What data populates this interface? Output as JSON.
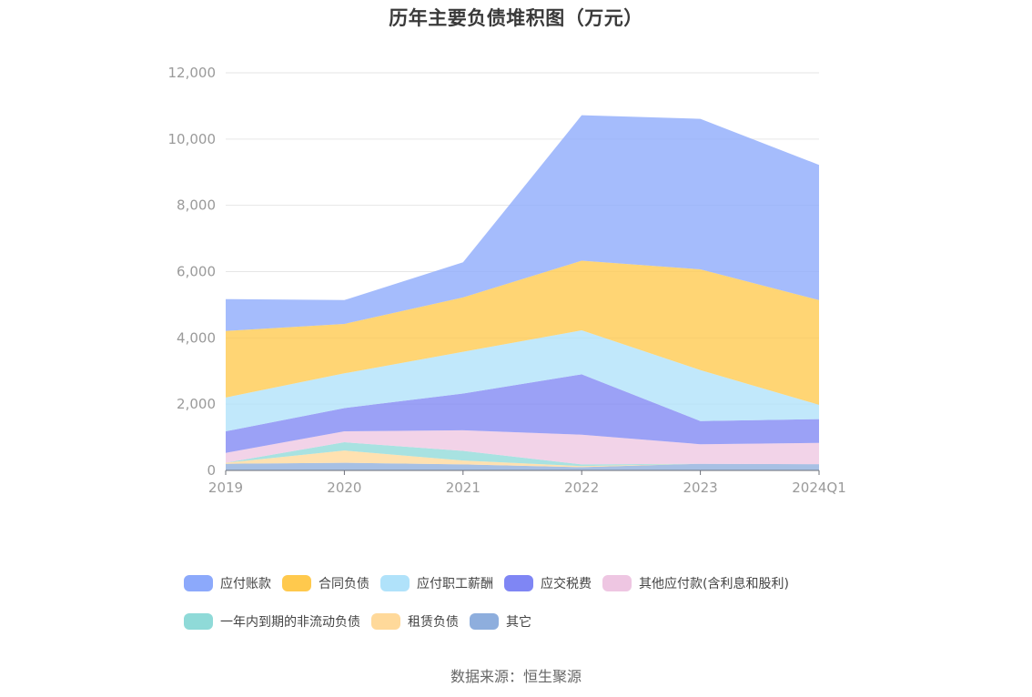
{
  "title": "历年主要负债堆积图（万元）",
  "source": "数据来源：恒生聚源",
  "chart_data": {
    "type": "area",
    "stacked": true,
    "categories": [
      "2019",
      "2020",
      "2021",
      "2022",
      "2023",
      "2024Q1"
    ],
    "ylim": [
      0,
      12000
    ],
    "yticks": [
      0,
      2000,
      4000,
      6000,
      8000,
      10000,
      12000
    ],
    "ytick_labels": [
      "0",
      "2,000",
      "4,000",
      "6,000",
      "8,000",
      "10,000",
      "12,000"
    ],
    "grid": true,
    "legend_position": "bottom",
    "series": [
      {
        "name": "其它",
        "color": "#8eaedd",
        "values": [
          200,
          230,
          180,
          100,
          200,
          190
        ]
      },
      {
        "name": "租赁负债",
        "color": "#ffd99a",
        "values": [
          30,
          370,
          120,
          30,
          0,
          0
        ]
      },
      {
        "name": "一年内到期的非流动负债",
        "color": "#8fdad8",
        "values": [
          0,
          250,
          290,
          50,
          0,
          0
        ]
      },
      {
        "name": "其他应付款(含利息和股利)",
        "color": "#eec6e2",
        "values": [
          300,
          330,
          620,
          900,
          590,
          640
        ]
      },
      {
        "name": "应交税费",
        "color": "#7f86f4",
        "values": [
          650,
          700,
          1110,
          1820,
          700,
          720
        ]
      },
      {
        "name": "应付职工薪酬",
        "color": "#b0e2fa",
        "values": [
          1020,
          1050,
          1260,
          1330,
          1540,
          430
        ]
      },
      {
        "name": "合同负债",
        "color": "#ffc94d",
        "values": [
          2010,
          1490,
          1640,
          2100,
          3040,
          3160
        ]
      },
      {
        "name": "应付账款",
        "color": "#8ca9fb",
        "values": [
          960,
          720,
          1060,
          4390,
          4540,
          4080
        ]
      }
    ],
    "legend_order": [
      "应付账款",
      "合同负债",
      "应付职工薪酬",
      "应交税费",
      "其他应付款(含利息和股利)",
      "一年内到期的非流动负债",
      "租赁负债",
      "其它"
    ]
  }
}
